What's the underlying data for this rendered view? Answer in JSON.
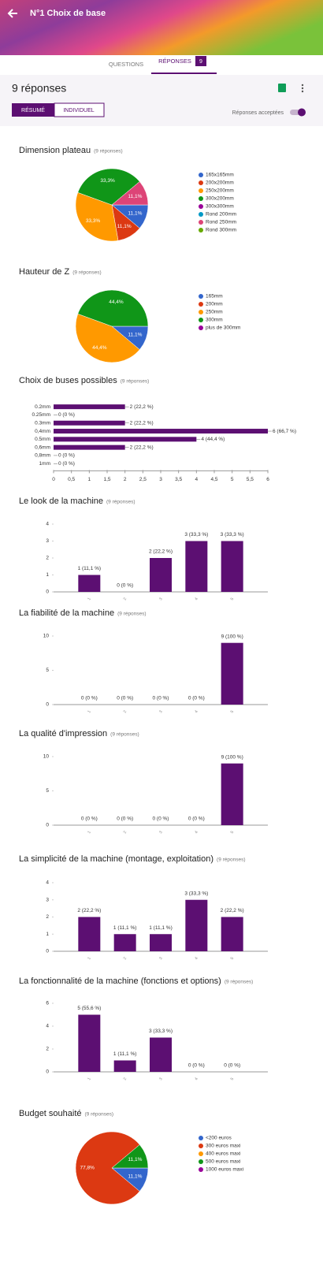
{
  "header": {
    "title": "N°1 Choix de base"
  },
  "tabs": {
    "questions": "QUESTIONS",
    "responses": "RÉPONSES",
    "badge": "9"
  },
  "summary": {
    "count": "9 réponses",
    "summary_button": "RÉSUMÉ",
    "individual_button": "INDIVIDUEL",
    "accepting": "Réponses acceptées"
  },
  "chart_data": [
    {
      "type": "pie",
      "title": "Dimension plateau",
      "subtitle": "(9 réponses)",
      "categories": [
        "165x165mm",
        "200x200mm",
        "250x200mm",
        "300x200mm",
        "300x300mm",
        "Rond 200mm",
        "Rond 250mm",
        "Rond 300mm"
      ],
      "values": [
        11.1,
        11.1,
        33.3,
        33.3,
        0,
        0,
        11.1,
        0
      ],
      "value_labels": [
        "11,1%",
        "11,1%",
        "33,3%",
        "33,3%",
        null,
        null,
        "11,1%",
        null
      ],
      "colors": [
        "#3366cc",
        "#dc3912",
        "#ff9900",
        "#109618",
        "#990099",
        "#0099c6",
        "#dd4477",
        "#66aa00"
      ]
    },
    {
      "type": "pie",
      "title": "Hauteur de Z",
      "subtitle": "(9 réponses)",
      "categories": [
        "165mm",
        "200mm",
        "250mm",
        "300mm",
        "plus de 300mm"
      ],
      "values": [
        11.1,
        0,
        44.4,
        44.4,
        0
      ],
      "value_labels": [
        "11,1%",
        null,
        "44,4%",
        "44,4%",
        null
      ],
      "colors": [
        "#3366cc",
        "#dc3912",
        "#ff9900",
        "#109618",
        "#990099"
      ]
    },
    {
      "type": "hbar",
      "title": "Choix de buses possibles",
      "subtitle": "(9 réponses)",
      "categories": [
        "0.2mm",
        "0.25mm",
        "0.3mm",
        "0,4mm",
        "0.5mm",
        "0,6mm",
        "0,8mm",
        "1mm"
      ],
      "values": [
        2,
        0,
        2,
        6,
        4,
        2,
        0,
        0
      ],
      "value_labels": [
        "2 (22,2 %)",
        "0 (0 %)",
        "2 (22,2 %)",
        "6 (66,7 %)",
        "4 (44,4 %)",
        "2 (22,2 %)",
        "0 (0 %)",
        "0 (0 %)"
      ],
      "color": "#5c0f72",
      "xlim": [
        0,
        6
      ],
      "xticks": [
        0,
        {
          "value": 0.5,
          "label": "0,5"
        },
        1,
        {
          "value": 1.5,
          "label": "1,5"
        },
        2,
        {
          "value": 2.5,
          "label": "2,5"
        },
        3,
        {
          "value": 3.5,
          "label": "3,5"
        },
        4,
        {
          "value": 4.5,
          "label": "4,5"
        },
        5,
        {
          "value": 5.5,
          "label": "5,5"
        },
        6
      ]
    },
    {
      "type": "bar",
      "title": "Le look de la machine",
      "subtitle": "(9 réponses)",
      "categories": [
        "1",
        "2",
        "3",
        "4",
        "5"
      ],
      "values": [
        1,
        0,
        2,
        3,
        3
      ],
      "value_labels": [
        "1 (11,1 %)",
        "0 (0 %)",
        "2 (22,2 %)",
        "3 (33,3 %)",
        "3 (33,3 %)"
      ],
      "color": "#5c0f72",
      "ylim": [
        0,
        4
      ],
      "yticks": [
        0,
        1,
        2,
        3,
        4
      ]
    },
    {
      "type": "bar",
      "title": "La fiabilité de la machine",
      "subtitle": "(9 réponses)",
      "categories": [
        "1",
        "2",
        "3",
        "4",
        "5"
      ],
      "values": [
        0,
        0,
        0,
        0,
        9
      ],
      "value_labels": [
        "0 (0 %)",
        "0 (0 %)",
        "0 (0 %)",
        "0 (0 %)",
        "9 (100 %)"
      ],
      "color": "#5c0f72",
      "ylim": [
        0,
        10
      ],
      "yticks": [
        0,
        5,
        10
      ]
    },
    {
      "type": "bar",
      "title": "La qualité d'impression",
      "subtitle": "(9 réponses)",
      "categories": [
        "1",
        "2",
        "3",
        "4",
        "5"
      ],
      "values": [
        0,
        0,
        0,
        0,
        9
      ],
      "value_labels": [
        "0 (0 %)",
        "0 (0 %)",
        "0 (0 %)",
        "0 (0 %)",
        "9 (100 %)"
      ],
      "color": "#5c0f72",
      "ylim": [
        0,
        10
      ],
      "yticks": [
        0,
        5,
        10
      ]
    },
    {
      "type": "bar",
      "title": "La simplicité de la machine (montage, exploitation)",
      "subtitle": "(9 réponses)",
      "categories": [
        "1",
        "2",
        "3",
        "4",
        "5"
      ],
      "values": [
        2,
        1,
        1,
        3,
        2
      ],
      "value_labels": [
        "2 (22,2 %)",
        "1 (11,1 %)",
        "1 (11,1 %)",
        "3 (33,3 %)",
        "2 (22,2 %)"
      ],
      "color": "#5c0f72",
      "ylim": [
        0,
        4
      ],
      "yticks": [
        0,
        1,
        2,
        3,
        4
      ]
    },
    {
      "type": "bar",
      "title": "La fonctionnalité de la machine (fonctions et options)",
      "subtitle": "(9 réponses)",
      "categories": [
        "1",
        "2",
        "3",
        "4",
        "5"
      ],
      "values": [
        5,
        1,
        3,
        0,
        0
      ],
      "value_labels": [
        "5 (55,6 %)",
        "1 (11,1 %)",
        "3 (33,3 %)",
        "0 (0 %)",
        "0 (0 %)"
      ],
      "color": "#5c0f72",
      "ylim": [
        0,
        6
      ],
      "yticks": [
        0,
        2,
        4,
        6
      ]
    },
    {
      "type": "pie",
      "title": "Budget souhaité",
      "subtitle": "(9 réponses)",
      "categories": [
        "<200 euros",
        "300 euros maxi",
        "400 euros maxi",
        "500 euros maxi",
        "1000 euros maxi"
      ],
      "values": [
        11.1,
        77.8,
        0,
        11.1,
        0
      ],
      "value_labels": [
        "11,1%",
        "77,8%",
        null,
        "11,1%",
        null
      ],
      "colors": [
        "#3366cc",
        "#dc3912",
        "#ff9900",
        "#109618",
        "#990099"
      ]
    }
  ]
}
